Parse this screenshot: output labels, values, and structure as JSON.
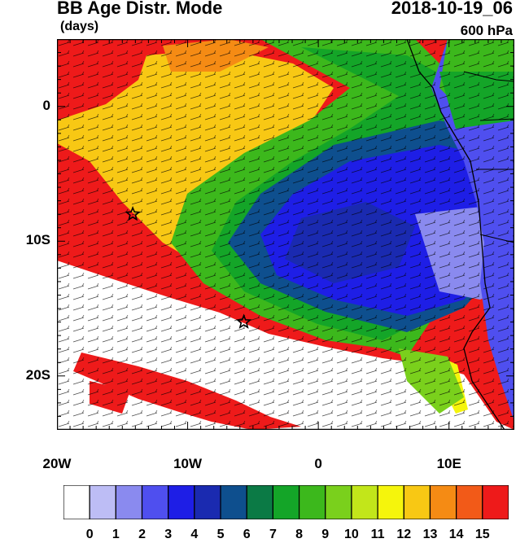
{
  "title": {
    "main": "BB Age Distr. Mode",
    "units": "(days)",
    "datetime": "2018-10-19_06",
    "level": "600 hPa"
  },
  "map": {
    "lon_range": [
      -20,
      15
    ],
    "lat_range": [
      -24,
      5
    ],
    "y_ticks": [
      {
        "label": "0",
        "lat": 0
      },
      {
        "label": "10S",
        "lat": -10
      },
      {
        "label": "20S",
        "lat": -20
      }
    ],
    "x_ticks": [
      {
        "label": "20W",
        "lon": -20
      },
      {
        "label": "10W",
        "lon": -10
      },
      {
        "label": "0",
        "lon": 0
      },
      {
        "label": "10E",
        "lon": 10
      }
    ],
    "markers": [
      {
        "type": "star",
        "lon": -14.2,
        "lat": -8.0
      },
      {
        "type": "star",
        "lon": -5.7,
        "lat": -16.0
      }
    ],
    "overlay": "wind barbs"
  },
  "colorbar": {
    "labels": [
      "0",
      "1",
      "2",
      "3",
      "4",
      "5",
      "6",
      "7",
      "8",
      "9",
      "10",
      "11",
      "12",
      "13",
      "14",
      "15"
    ],
    "colors": [
      "#ffffff",
      "#bdbdf5",
      "#8a8aef",
      "#4f4fef",
      "#1e1ee6",
      "#1a2ab0",
      "#0e4f8e",
      "#0b7a45",
      "#14a528",
      "#3cb81c",
      "#7ad01c",
      "#c2e61a",
      "#f5f50c",
      "#f8c814",
      "#f58b14",
      "#f25a18",
      "#ee1a1a"
    ]
  }
}
